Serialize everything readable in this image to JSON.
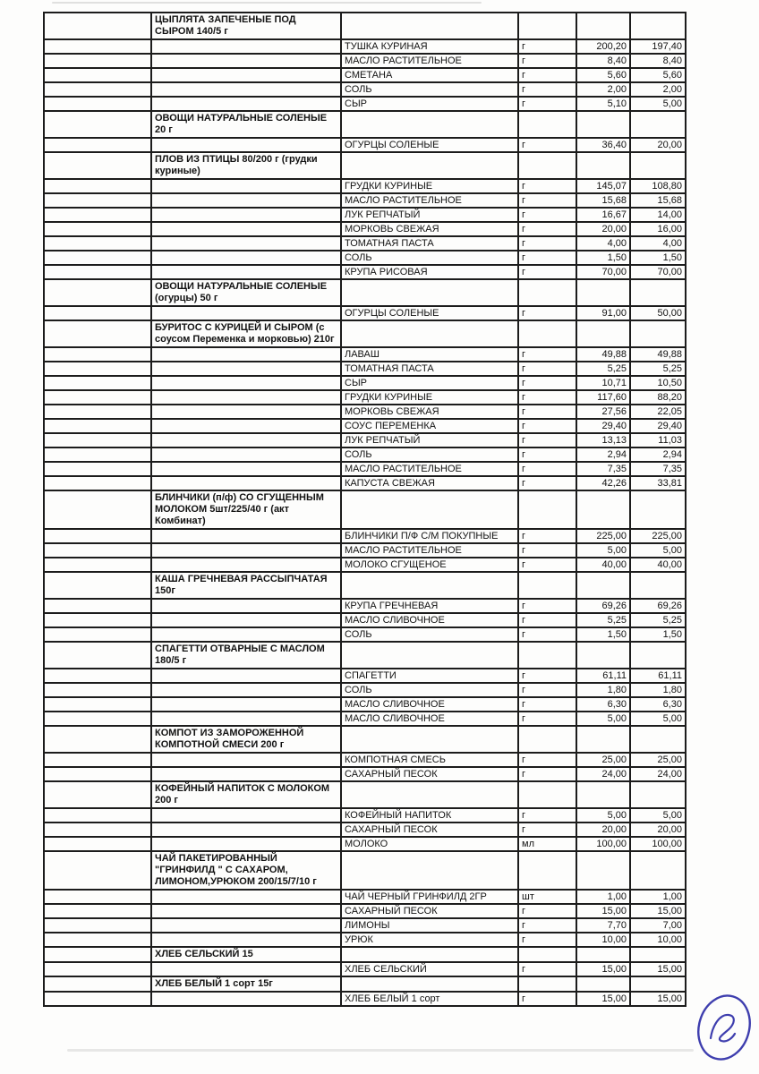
{
  "document": {
    "kind": "scanned recipe cost sheet (continuation page)",
    "page_annotation": "2",
    "annotation_color": "#3e3eae"
  },
  "recipes": [
    {
      "dish": "ЦЫПЛЯТА ЗАПЕЧЕНЫЕ ПОД СЫРОМ 140/5 г",
      "ingredients": [
        {
          "name": "ТУШКА КУРИНАЯ",
          "unit": "г",
          "gross": "200,20",
          "net": "197,40"
        },
        {
          "name": "МАСЛО РАСТИТЕЛЬНОЕ",
          "unit": "г",
          "gross": "8,40",
          "net": "8,40"
        },
        {
          "name": "СМЕТАНА",
          "unit": "г",
          "gross": "5,60",
          "net": "5,60"
        },
        {
          "name": "СОЛЬ",
          "unit": "г",
          "gross": "2,00",
          "net": "2,00"
        },
        {
          "name": "СЫР",
          "unit": "г",
          "gross": "5,10",
          "net": "5,00"
        }
      ]
    },
    {
      "dish": "ОВОЩИ НАТУРАЛЬНЫЕ СОЛЕНЫЕ 20 г",
      "ingredients": [
        {
          "name": "ОГУРЦЫ СОЛЕНЫЕ",
          "unit": "г",
          "gross": "36,40",
          "net": "20,00"
        }
      ]
    },
    {
      "dish": "ПЛОВ ИЗ ПТИЦЫ 80/200 г (грудки куриные)",
      "ingredients": [
        {
          "name": "ГРУДКИ КУРИНЫЕ",
          "unit": "г",
          "gross": "145,07",
          "net": "108,80"
        },
        {
          "name": "МАСЛО РАСТИТЕЛЬНОЕ",
          "unit": "г",
          "gross": "15,68",
          "net": "15,68"
        },
        {
          "name": "ЛУК РЕПЧАТЫЙ",
          "unit": "г",
          "gross": "16,67",
          "net": "14,00"
        },
        {
          "name": "МОРКОВЬ СВЕЖАЯ",
          "unit": "г",
          "gross": "20,00",
          "net": "16,00"
        },
        {
          "name": "ТОМАТНАЯ ПАСТА",
          "unit": "г",
          "gross": "4,00",
          "net": "4,00"
        },
        {
          "name": "СОЛЬ",
          "unit": "г",
          "gross": "1,50",
          "net": "1,50"
        },
        {
          "name": "КРУПА РИСОВАЯ",
          "unit": "г",
          "gross": "70,00",
          "net": "70,00"
        }
      ]
    },
    {
      "dish": "ОВОЩИ НАТУРАЛЬНЫЕ СОЛЕНЫЕ (огурцы) 50 г",
      "ingredients": [
        {
          "name": "ОГУРЦЫ СОЛЕНЫЕ",
          "unit": "г",
          "gross": "91,00",
          "net": "50,00"
        }
      ]
    },
    {
      "dish": "БУРИТОС  С  КУРИЦЕЙ И СЫРОМ (с соусом Переменка и морковью)  210г",
      "ingredients": [
        {
          "name": "ЛАВАШ",
          "unit": "г",
          "gross": "49,88",
          "net": "49,88"
        },
        {
          "name": "ТОМАТНАЯ ПАСТА",
          "unit": "г",
          "gross": "5,25",
          "net": "5,25"
        },
        {
          "name": "СЫР",
          "unit": "г",
          "gross": "10,71",
          "net": "10,50"
        },
        {
          "name": "ГРУДКИ КУРИНЫЕ",
          "unit": "г",
          "gross": "117,60",
          "net": "88,20"
        },
        {
          "name": "МОРКОВЬ СВЕЖАЯ",
          "unit": "г",
          "gross": "27,56",
          "net": "22,05"
        },
        {
          "name": "СОУС ПЕРЕМЕНКА",
          "unit": "г",
          "gross": "29,40",
          "net": "29,40"
        },
        {
          "name": "ЛУК РЕПЧАТЫЙ",
          "unit": "г",
          "gross": "13,13",
          "net": "11,03"
        },
        {
          "name": "СОЛЬ",
          "unit": "г",
          "gross": "2,94",
          "net": "2,94"
        },
        {
          "name": "МАСЛО РАСТИТЕЛЬНОЕ",
          "unit": "г",
          "gross": "7,35",
          "net": "7,35"
        },
        {
          "name": "КАПУСТА СВЕЖАЯ",
          "unit": "г",
          "gross": "42,26",
          "net": "33,81"
        }
      ]
    },
    {
      "dish": "БЛИНЧИКИ  (п/ф) СО СГУЩЕННЫМ МОЛОКОМ  5шт/225/40 г (акт Комбинат)",
      "ingredients": [
        {
          "name": "БЛИНЧИКИ П/Ф С/М ПОКУПНЫЕ",
          "unit": "г",
          "gross": "225,00",
          "net": "225,00"
        },
        {
          "name": "МАСЛО РАСТИТЕЛЬНОЕ",
          "unit": "г",
          "gross": "5,00",
          "net": "5,00"
        },
        {
          "name": "МОЛОКО СГУЩЕНОЕ",
          "unit": "г",
          "gross": "40,00",
          "net": "40,00"
        }
      ]
    },
    {
      "dish": "КАША ГРЕЧНЕВАЯ РАССЫПЧАТАЯ 150г",
      "ingredients": [
        {
          "name": "КРУПА ГРЕЧНЕВАЯ",
          "unit": "г",
          "gross": "69,26",
          "net": "69,26"
        },
        {
          "name": "МАСЛО СЛИВОЧНОЕ",
          "unit": "г",
          "gross": "5,25",
          "net": "5,25"
        },
        {
          "name": "СОЛЬ",
          "unit": "г",
          "gross": "1,50",
          "net": "1,50"
        }
      ]
    },
    {
      "dish": "СПАГЕТТИ ОТВАРНЫЕ С МАСЛОМ 180/5 г",
      "ingredients": [
        {
          "name": "СПАГЕТТИ",
          "unit": "г",
          "gross": "61,11",
          "net": "61,11"
        },
        {
          "name": "СОЛЬ",
          "unit": "г",
          "gross": "1,80",
          "net": "1,80"
        },
        {
          "name": "МАСЛО СЛИВОЧНОЕ",
          "unit": "г",
          "gross": "6,30",
          "net": "6,30"
        },
        {
          "name": "МАСЛО СЛИВОЧНОЕ",
          "unit": "г",
          "gross": "5,00",
          "net": "5,00"
        }
      ]
    },
    {
      "dish": "КОМПОТ ИЗ ЗАМОРОЖЕННОЙ КОМПОТНОЙ  СМЕСИ 200 г",
      "ingredients": [
        {
          "name": "КОМПОТНАЯ СМЕСЬ",
          "unit": "г",
          "gross": "25,00",
          "net": "25,00"
        },
        {
          "name": "САХАРНЫЙ ПЕСОК",
          "unit": "г",
          "gross": "24,00",
          "net": "24,00"
        }
      ]
    },
    {
      "dish": "КОФЕЙНЫЙ НАПИТОК С МОЛОКОМ 200 г",
      "ingredients": [
        {
          "name": "КОФЕЙНЫЙ НАПИТОК",
          "unit": "г",
          "gross": "5,00",
          "net": "5,00"
        },
        {
          "name": "САХАРНЫЙ ПЕСОК",
          "unit": "г",
          "gross": "20,00",
          "net": "20,00"
        },
        {
          "name": "МОЛОКО",
          "unit": "мл",
          "gross": "100,00",
          "net": "100,00"
        }
      ]
    },
    {
      "dish": "ЧАЙ ПАКЕТИРОВАННЫЙ \"ГРИНФИЛД \" С САХАРОМ, ЛИМОНОМ,УРЮКОМ 200/15/7/10 г",
      "ingredients": [
        {
          "name": "ЧАЙ ЧЕРНЫЙ ГРИНФИЛД 2ГР",
          "unit": "шт",
          "gross": "1,00",
          "net": "1,00"
        },
        {
          "name": "САХАРНЫЙ ПЕСОК",
          "unit": "г",
          "gross": "15,00",
          "net": "15,00"
        },
        {
          "name": "ЛИМОНЫ",
          "unit": "г",
          "gross": "7,70",
          "net": "7,00"
        },
        {
          "name": "УРЮК",
          "unit": "г",
          "gross": "10,00",
          "net": "10,00"
        }
      ]
    },
    {
      "dish": "ХЛЕБ СЕЛЬСКИЙ  15",
      "ingredients": [
        {
          "name": "ХЛЕБ СЕЛЬСКИЙ",
          "unit": "г",
          "gross": "15,00",
          "net": "15,00"
        }
      ]
    },
    {
      "dish": "ХЛЕБ БЕЛЫЙ 1 сорт 15г",
      "ingredients": [
        {
          "name": "ХЛЕБ БЕЛЫЙ 1 сорт",
          "unit": "г",
          "gross": "15,00",
          "net": "15,00"
        }
      ]
    }
  ]
}
